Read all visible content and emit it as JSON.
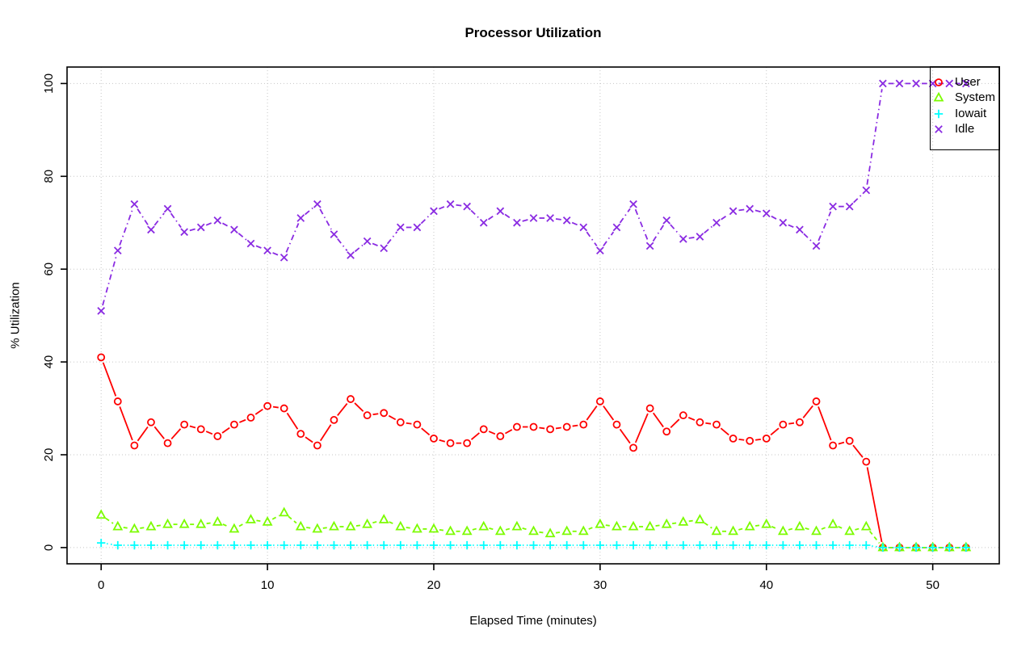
{
  "chart_data": {
    "type": "line",
    "title": "Processor Utilization",
    "xlabel": "Elapsed Time (minutes)",
    "ylabel": "% Utilization",
    "x_ticks": [
      0,
      10,
      20,
      30,
      40,
      50
    ],
    "y_ticks": [
      0,
      20,
      40,
      60,
      80,
      100
    ],
    "xlim": [
      -2.05,
      54.0
    ],
    "ylim": [
      -3.5,
      103.55
    ],
    "grid": true,
    "legend_position": "top-right",
    "x": [
      0,
      1,
      2,
      3,
      4,
      5,
      6,
      7,
      8,
      9,
      10,
      11,
      12,
      13,
      14,
      15,
      16,
      17,
      18,
      19,
      20,
      21,
      22,
      23,
      24,
      25,
      26,
      27,
      28,
      29,
      30,
      31,
      32,
      33,
      34,
      35,
      36,
      37,
      38,
      39,
      40,
      41,
      42,
      43,
      44,
      45,
      46,
      47,
      48,
      49,
      50,
      51,
      52
    ],
    "series": [
      {
        "name": "User",
        "color": "#ff0000",
        "marker": "circle",
        "line_style": "solid",
        "values": [
          41,
          31.5,
          22,
          27,
          22.5,
          26.5,
          25.5,
          24,
          26.5,
          28,
          30.5,
          30,
          24.5,
          22,
          27.5,
          32,
          28.5,
          29,
          27,
          26.5,
          23.5,
          22.5,
          22.5,
          25.5,
          24,
          26,
          26,
          25.5,
          26,
          26.5,
          31.5,
          26.5,
          21.5,
          30,
          25,
          28.5,
          27,
          26.5,
          23.5,
          23,
          23.5,
          26.5,
          27,
          31.5,
          22,
          23,
          18.5,
          0,
          0,
          0,
          0,
          0,
          0
        ]
      },
      {
        "name": "System",
        "color": "#7cfc00",
        "marker": "triangle",
        "line_style": "dashed",
        "values": [
          7,
          4.5,
          4,
          4.5,
          5,
          5,
          5,
          5.5,
          4,
          6,
          5.5,
          7.5,
          4.5,
          4,
          4.5,
          4.5,
          5,
          6,
          4.5,
          4,
          4,
          3.5,
          3.5,
          4.5,
          3.5,
          4.5,
          3.5,
          3,
          3.5,
          3.5,
          5,
          4.5,
          4.5,
          4.5,
          5,
          5.5,
          6,
          3.5,
          3.5,
          4.5,
          5,
          3.5,
          4.5,
          3.5,
          5,
          3.5,
          4.5,
          0,
          0,
          0,
          0,
          0,
          0
        ]
      },
      {
        "name": "Iowait",
        "color": "#00ffff",
        "marker": "plus",
        "line_style": "dotted",
        "values": [
          1,
          0.5,
          0.5,
          0.5,
          0.5,
          0.5,
          0.5,
          0.5,
          0.5,
          0.5,
          0.5,
          0.5,
          0.5,
          0.5,
          0.5,
          0.5,
          0.5,
          0.5,
          0.5,
          0.5,
          0.5,
          0.5,
          0.5,
          0.5,
          0.5,
          0.5,
          0.5,
          0.5,
          0.5,
          0.5,
          0.5,
          0.5,
          0.5,
          0.5,
          0.5,
          0.5,
          0.5,
          0.5,
          0.5,
          0.5,
          0.5,
          0.5,
          0.5,
          0.5,
          0.5,
          0.5,
          0.5,
          0,
          0,
          0,
          0,
          0,
          0
        ]
      },
      {
        "name": "Idle",
        "color": "#8a2be2",
        "marker": "x",
        "line_style": "dashdot",
        "values": [
          51,
          64,
          74,
          68.5,
          73,
          68,
          69,
          70.5,
          68.5,
          65.5,
          64,
          62.5,
          71,
          74,
          67.5,
          63,
          66,
          64.5,
          69,
          69,
          72.5,
          74,
          73.5,
          70,
          72.5,
          70,
          71,
          71,
          70.5,
          69,
          64,
          69,
          74,
          65,
          70.5,
          66.5,
          67,
          70,
          72.5,
          73,
          72,
          70,
          68.5,
          65,
          73.5,
          73.5,
          77,
          100,
          100,
          100,
          100,
          100,
          100
        ]
      }
    ]
  }
}
